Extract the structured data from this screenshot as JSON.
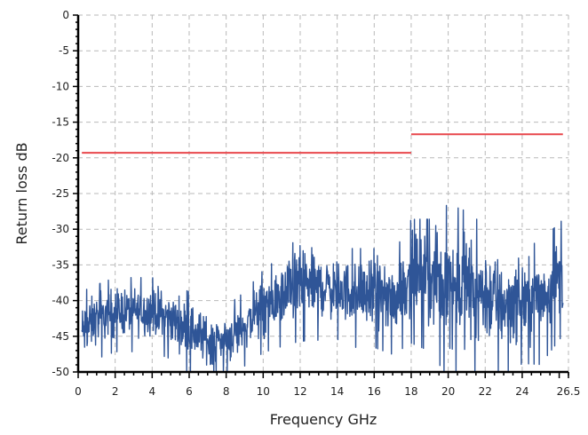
{
  "chart_data": {
    "type": "line",
    "xlabel": "Frequency GHz",
    "ylabel": "Return loss dB",
    "xlim": [
      0,
      26.5
    ],
    "ylim": [
      -50,
      0
    ],
    "x_ticks": [
      "0",
      "2",
      "4",
      "6",
      "8",
      "10",
      "12",
      "14",
      "16",
      "18",
      "20",
      "22",
      "24",
      "26.5"
    ],
    "x_tick_values": [
      0,
      2,
      4,
      6,
      8,
      10,
      12,
      14,
      16,
      18,
      20,
      22,
      24,
      26.5
    ],
    "y_ticks": [
      "0",
      "-5",
      "-10",
      "-15",
      "-20",
      "-25",
      "-30",
      "-35",
      "-40",
      "-45",
      "-50"
    ],
    "y_tick_values": [
      0,
      -5,
      -10,
      -15,
      -20,
      -25,
      -30,
      -35,
      -40,
      -45,
      -50
    ],
    "grid": true,
    "colors": {
      "measurement": "#2f5597",
      "limit": "#e8474c"
    },
    "series": [
      {
        "style": "noisy-line",
        "x": [
          0.2,
          1,
          2,
          3,
          4,
          5,
          6,
          7,
          8,
          9,
          10,
          11,
          12,
          13,
          14,
          15,
          16,
          17,
          18,
          19,
          20,
          21,
          22,
          23,
          24,
          25,
          26.2
        ],
        "envelope_high": [
          -39,
          -38,
          -37,
          -37,
          -37,
          -38,
          -39,
          -41,
          -41,
          -39,
          -36,
          -34,
          -31,
          -32,
          -33,
          -33,
          -33,
          -34,
          -29,
          -29,
          -27,
          -28,
          -30,
          -32,
          -33,
          -32,
          -29
        ],
        "envelope_low": [
          -50,
          -47,
          -46,
          -46,
          -46,
          -47,
          -49,
          -50,
          -50,
          -48,
          -46,
          -45,
          -44,
          -44,
          -44,
          -45,
          -45,
          -46,
          -44,
          -45,
          -48,
          -48,
          -48,
          -49,
          -47,
          -47,
          -43
        ]
      },
      {
        "style": "limit-line",
        "segments": [
          {
            "x": [
              0.2,
              18
            ],
            "y": [
              -19.3,
              -19.3
            ]
          },
          {
            "x": [
              18,
              26.2
            ],
            "y": [
              -16.7,
              -16.7
            ]
          }
        ]
      }
    ]
  }
}
